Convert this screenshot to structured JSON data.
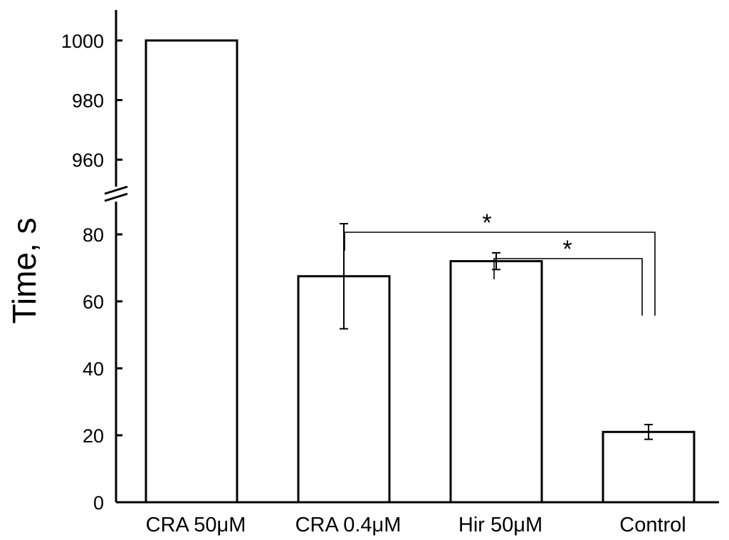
{
  "chart_data": {
    "type": "bar",
    "title": "",
    "xlabel": "",
    "ylabel": "Time, s",
    "categories": [
      "CRA 50μM",
      "CRA 0.4μM",
      "Hir 50μM",
      "Control"
    ],
    "values": [
      1000,
      67.5,
      72,
      21
    ],
    "errors": [
      0,
      15.7,
      2.5,
      2.2
    ],
    "y_axis_break": {
      "lower_range": [
        0,
        90
      ],
      "upper_range": [
        950,
        1010
      ]
    },
    "yticks_lower": [
      "0",
      "20",
      "40",
      "60",
      "80"
    ],
    "yticks_upper": [
      "960",
      "980",
      "1000"
    ],
    "grid": false,
    "legend": "none",
    "significance": [
      {
        "from": "CRA 0.4μM",
        "to": "Control",
        "label": "*"
      },
      {
        "from": "Hir 50μM",
        "to": "Control",
        "label": "*"
      }
    ],
    "colors": {
      "bar_fill": "#ffffff",
      "stroke": "#000000"
    }
  }
}
